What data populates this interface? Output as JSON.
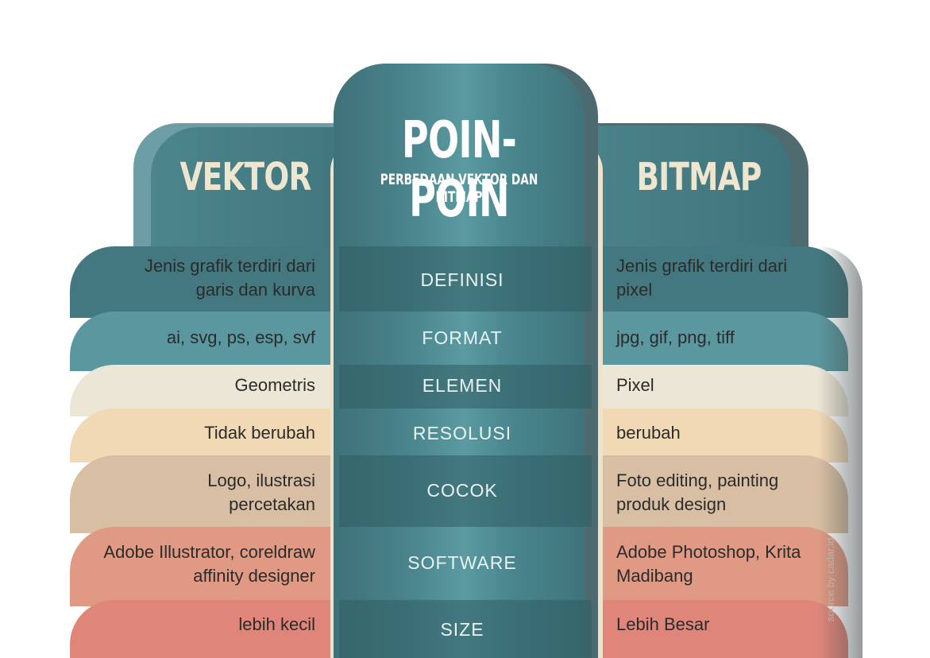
{
  "center": {
    "heading": "POIN-POIN",
    "subheading": "PERBEDAAN VEKTOR DAN BITMAP"
  },
  "columns": {
    "left_title": "VEKTOR",
    "right_title": "BITMAP"
  },
  "rows": [
    {
      "label": "DEFINISI",
      "vektor": [
        "Jenis grafik terdiri dari",
        "garis dan kurva"
      ],
      "bitmap": [
        "Jenis grafik terdiri dari",
        "pixel"
      ],
      "color": "#437880"
    },
    {
      "label": "FORMAT",
      "vektor": [
        "ai, svg, ps, esp, svf"
      ],
      "bitmap": [
        "jpg, gif, png, tiff"
      ],
      "color": "#5b979e"
    },
    {
      "label": "ELEMEN",
      "vektor": [
        "Geometris"
      ],
      "bitmap": [
        "Pixel"
      ],
      "color": "#ece6d6"
    },
    {
      "label": "RESOLUSI",
      "vektor": [
        "Tidak berubah"
      ],
      "bitmap": [
        "berubah"
      ],
      "color": "#f2d9b6"
    },
    {
      "label": "COCOK",
      "vektor": [
        "Logo, ilustrasi",
        "percetakan"
      ],
      "bitmap": [
        "Foto editing, painting",
        "produk design"
      ],
      "color": "#d8bfa3"
    },
    {
      "label": "SOFTWARE",
      "vektor": [
        "Adobe Illustrator, coreldraw",
        "affinity designer"
      ],
      "bitmap": [
        "Adobe Photoshop, Krita",
        "Madibang"
      ],
      "color": "#e09a84"
    },
    {
      "label": "SIZE",
      "vektor": [
        "lebih kecil"
      ],
      "bitmap": [
        "Lebih Besar"
      ],
      "color": "#df857a"
    }
  ],
  "source": "source by cadar.id"
}
